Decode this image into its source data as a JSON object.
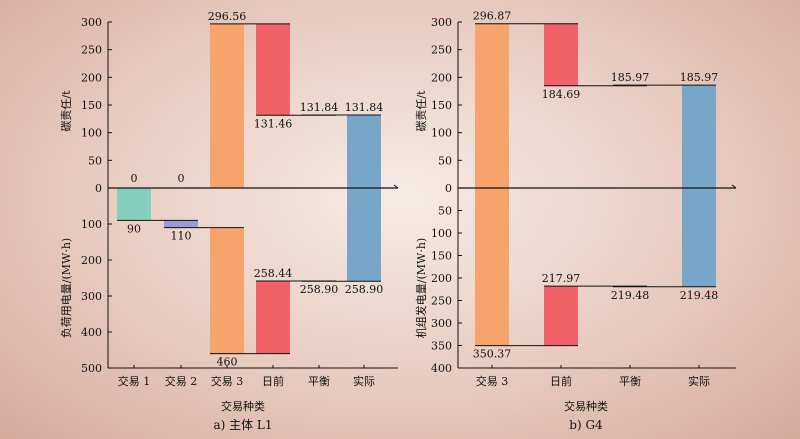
{
  "chart_data": [
    {
      "type": "waterfall",
      "caption": "a) 主体 L1",
      "xlabel": "交易种类",
      "ylabel_top": "碳责任/t",
      "ylabel_bottom": "负荷用电量/(MW·h)",
      "categories": [
        "交易 1",
        "交易 2",
        "交易 3",
        "日前",
        "平衡",
        "实际"
      ],
      "top_ylim": [
        0,
        300
      ],
      "top_ticks": [
        0,
        50,
        100,
        150,
        200,
        250,
        300
      ],
      "bottom_ylim": [
        0,
        500
      ],
      "bottom_ticks": [
        0,
        100,
        200,
        300,
        400,
        500
      ],
      "carbon": [
        {
          "category": "交易 1",
          "from": 0,
          "to": 0,
          "label": "0"
        },
        {
          "category": "交易 2",
          "from": 0,
          "to": 0,
          "label": "0"
        },
        {
          "category": "交易 3",
          "from": 0,
          "to": 296.56,
          "label": "296.56"
        },
        {
          "category": "日前",
          "from": 296.56,
          "to": 131.46,
          "label": "131.46"
        },
        {
          "category": "平衡",
          "from": 131.46,
          "to": 131.84,
          "label": "131.84"
        },
        {
          "category": "实际",
          "from": 0,
          "to": 131.84,
          "label": "131.84"
        }
      ],
      "energy": [
        {
          "category": "交易 1",
          "from": 0,
          "to": 90,
          "label": "90"
        },
        {
          "category": "交易 2",
          "from": 90,
          "to": 110,
          "label": "110"
        },
        {
          "category": "交易 3",
          "from": 110,
          "to": 460,
          "label": "460"
        },
        {
          "category": "日前",
          "from": 460,
          "to": 258.44,
          "label": "258.44"
        },
        {
          "category": "平衡",
          "from": 258.44,
          "to": 258.9,
          "label": "258.90"
        },
        {
          "category": "实际",
          "from": 0,
          "to": 258.9,
          "label": "258.90"
        }
      ]
    },
    {
      "type": "waterfall",
      "caption": "b) G4",
      "xlabel": "交易种类",
      "ylabel_top": "碳责任/t",
      "ylabel_bottom": "机组发电量/(MW·h)",
      "categories": [
        "交易 3",
        "日前",
        "平衡",
        "实际"
      ],
      "top_ylim": [
        0,
        300
      ],
      "top_ticks": [
        0,
        50,
        100,
        150,
        200,
        250,
        300
      ],
      "bottom_ylim": [
        0,
        400
      ],
      "bottom_ticks": [
        0,
        50,
        100,
        150,
        200,
        250,
        300,
        350,
        400
      ],
      "carbon": [
        {
          "category": "交易 3",
          "from": 0,
          "to": 296.87,
          "label": "296.87"
        },
        {
          "category": "日前",
          "from": 296.87,
          "to": 184.69,
          "label": "184.69"
        },
        {
          "category": "平衡",
          "from": 184.69,
          "to": 185.97,
          "label": "185.97"
        },
        {
          "category": "实际",
          "from": 0,
          "to": 185.97,
          "label": "185.97"
        }
      ],
      "energy": [
        {
          "category": "交易 3",
          "from": 0,
          "to": 350.37,
          "label": "350.37"
        },
        {
          "category": "日前",
          "from": 350.37,
          "to": 217.97,
          "label": "217.97"
        },
        {
          "category": "平衡",
          "from": 217.97,
          "to": 219.48,
          "label": "219.48"
        },
        {
          "category": "实际",
          "from": 0,
          "to": 219.48,
          "label": "219.48"
        }
      ]
    }
  ],
  "colors": {
    "交易 1": "#86cfbd",
    "交易 2": "#9a9ad8",
    "交易 3": "#f6a46c",
    "日前": "#f0616a",
    "平衡": "#5f9fc4",
    "实际": "#77a6c9",
    "axis": "#111111"
  }
}
